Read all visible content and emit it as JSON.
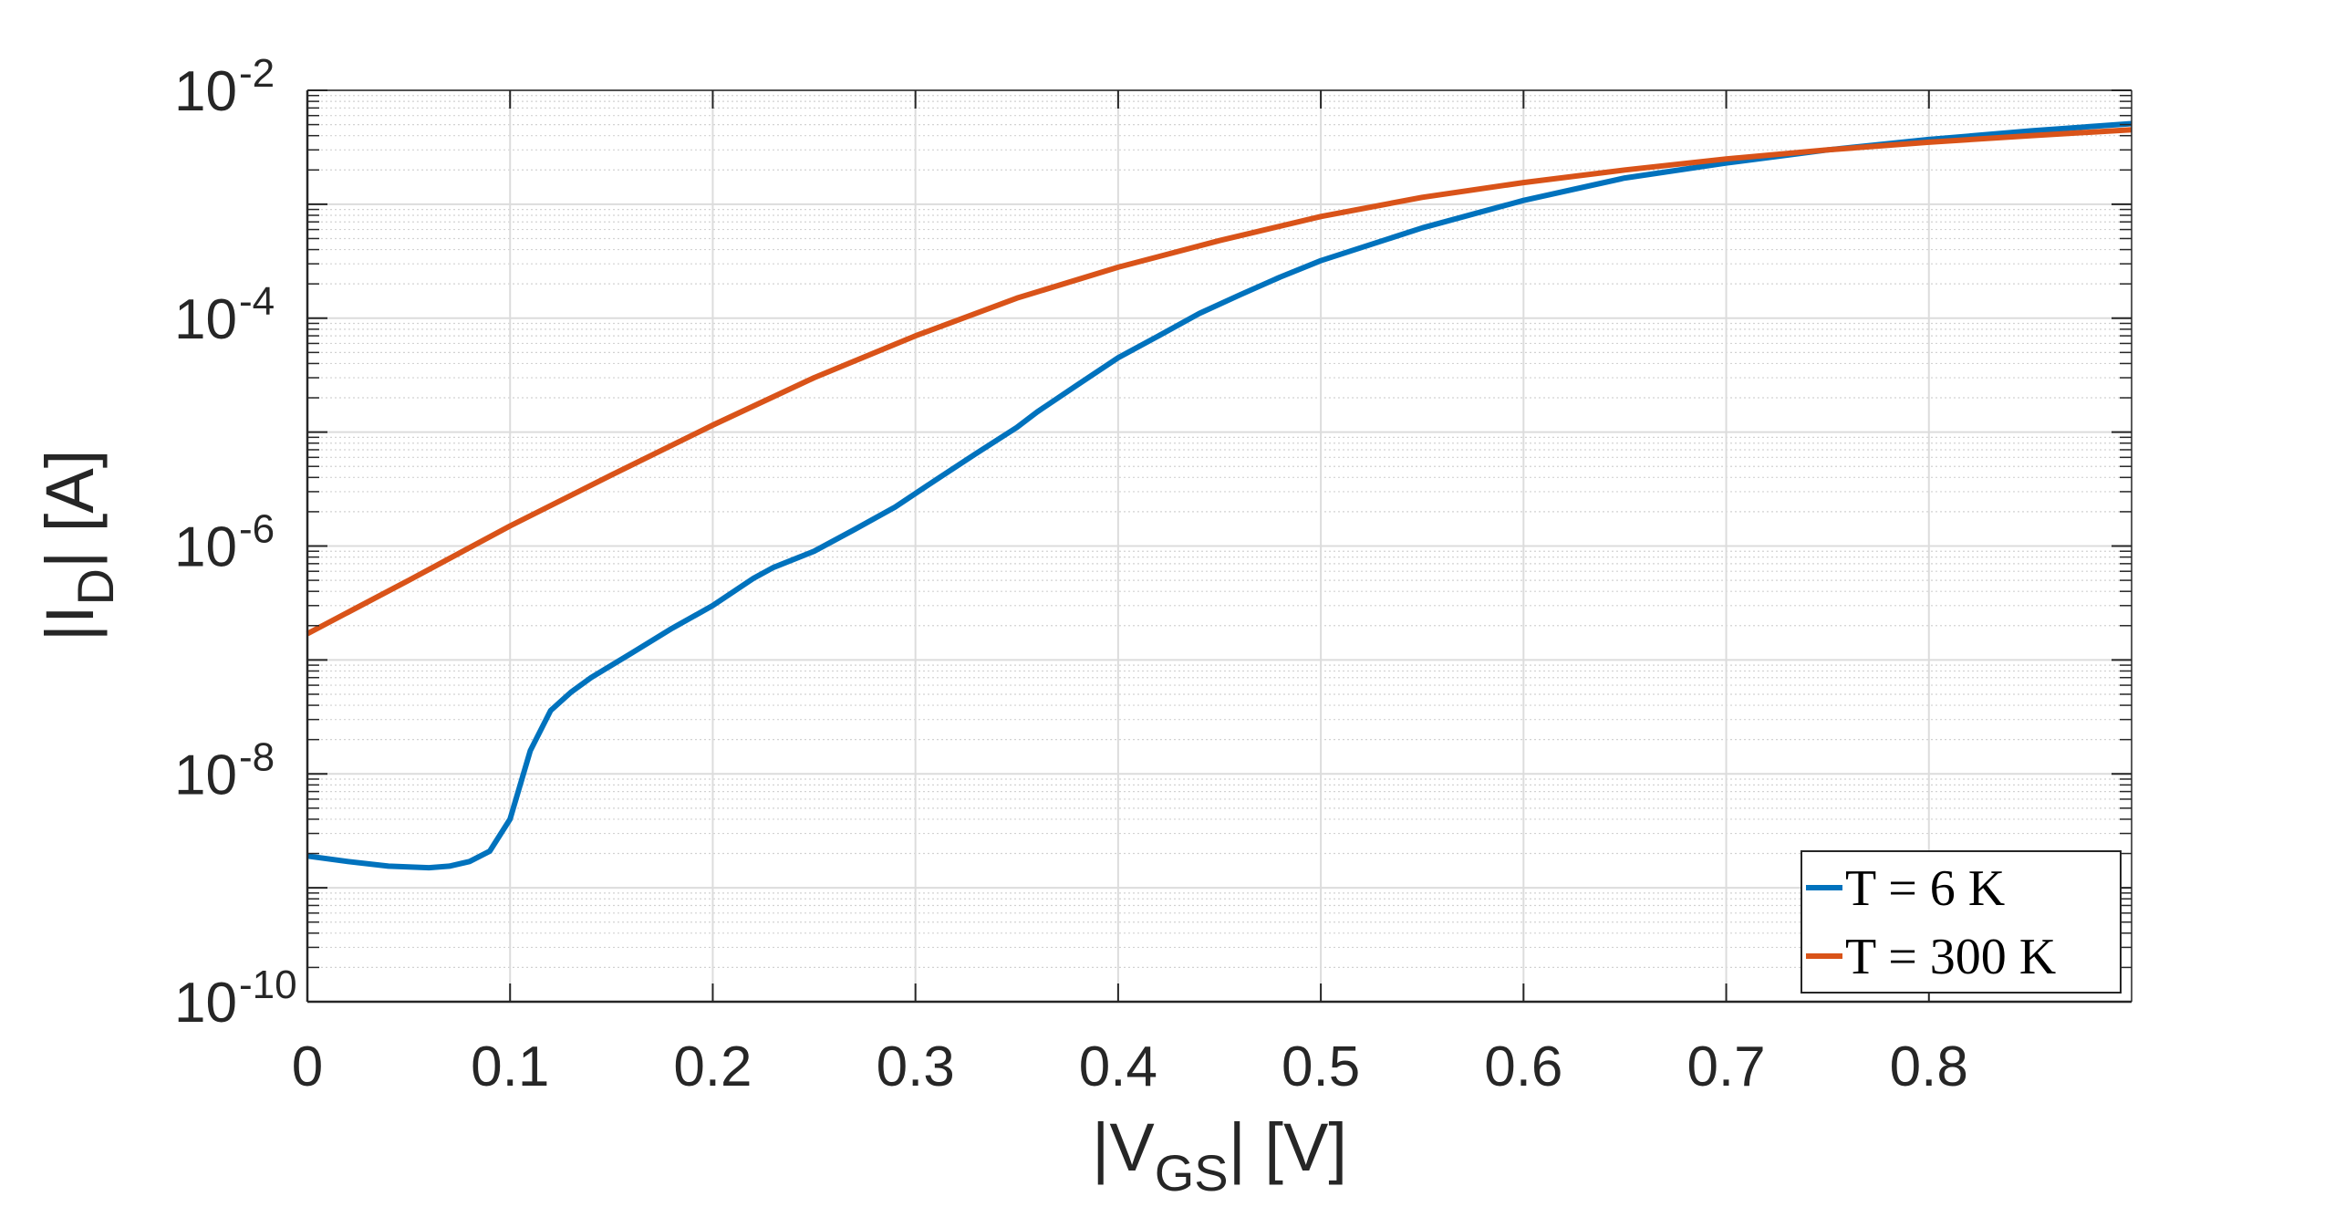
{
  "chart_data": {
    "type": "line",
    "title": "",
    "xlabel": {
      "base": "|V",
      "sub": "GS",
      "tail": "| [V]"
    },
    "ylabel": {
      "base": "|I",
      "sub": "D",
      "tail": "| [A]"
    },
    "xlim": [
      0,
      0.9
    ],
    "ylim": [
      1e-10,
      0.01
    ],
    "yscale": "log",
    "grid": true,
    "minor_grid": true,
    "legend_position": "bottom-right",
    "x_ticks": [
      {
        "value": 0,
        "label": "0"
      },
      {
        "value": 0.1,
        "label": "0.1"
      },
      {
        "value": 0.2,
        "label": "0.2"
      },
      {
        "value": 0.3,
        "label": "0.3"
      },
      {
        "value": 0.4,
        "label": "0.4"
      },
      {
        "value": 0.5,
        "label": "0.5"
      },
      {
        "value": 0.6,
        "label": "0.6"
      },
      {
        "value": 0.7,
        "label": "0.7"
      },
      {
        "value": 0.8,
        "label": "0.8"
      }
    ],
    "y_ticks": [
      {
        "value": 1e-10,
        "base": "10",
        "exp": "-10"
      },
      {
        "value": 1e-08,
        "base": "10",
        "exp": "-8"
      },
      {
        "value": 1e-06,
        "base": "10",
        "exp": "-6"
      },
      {
        "value": 0.0001,
        "base": "10",
        "exp": "-4"
      },
      {
        "value": 0.01,
        "base": "10",
        "exp": "-2"
      }
    ],
    "series": [
      {
        "name": "T = 6 K",
        "color": "#0072BD",
        "x": [
          0,
          0.02,
          0.04,
          0.06,
          0.07,
          0.08,
          0.09,
          0.1,
          0.11,
          0.12,
          0.13,
          0.14,
          0.16,
          0.18,
          0.2,
          0.22,
          0.23,
          0.25,
          0.27,
          0.29,
          0.31,
          0.33,
          0.35,
          0.36,
          0.38,
          0.4,
          0.42,
          0.44,
          0.46,
          0.48,
          0.5,
          0.55,
          0.6,
          0.65,
          0.7,
          0.75,
          0.8,
          0.85,
          0.9
        ],
        "y": [
          1.9e-09,
          1.7e-09,
          1.55e-09,
          1.5e-09,
          1.55e-09,
          1.7e-09,
          2.1e-09,
          4e-09,
          1.6e-08,
          3.6e-08,
          5.2e-08,
          7e-08,
          1.15e-07,
          1.9e-07,
          3e-07,
          5.2e-07,
          6.5e-07,
          9e-07,
          1.4e-06,
          2.2e-06,
          3.8e-06,
          6.5e-06,
          1.1e-05,
          1.5e-05,
          2.6e-05,
          4.5e-05,
          7e-05,
          0.00011,
          0.00016,
          0.00023,
          0.00032,
          0.00062,
          0.00108,
          0.0017,
          0.0023,
          0.003,
          0.0037,
          0.0044,
          0.0051
        ]
      },
      {
        "name": "T = 300 K",
        "color": "#D95319",
        "x": [
          0,
          0.05,
          0.1,
          0.15,
          0.2,
          0.25,
          0.3,
          0.35,
          0.4,
          0.45,
          0.5,
          0.55,
          0.6,
          0.65,
          0.7,
          0.75,
          0.8,
          0.85,
          0.9
        ],
        "y": [
          1.7e-07,
          5e-07,
          1.5e-06,
          4.2e-06,
          1.15e-05,
          3e-05,
          7e-05,
          0.00015,
          0.00028,
          0.00048,
          0.00078,
          0.00115,
          0.00155,
          0.002,
          0.0025,
          0.003,
          0.0035,
          0.004,
          0.0045
        ]
      }
    ]
  }
}
